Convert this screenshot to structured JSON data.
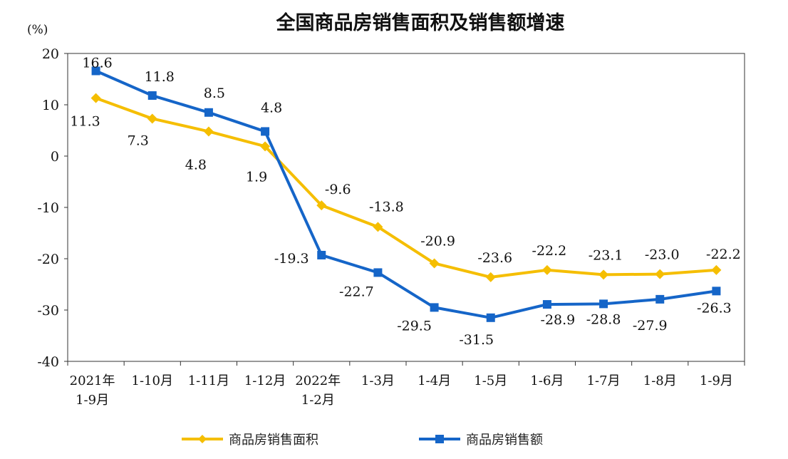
{
  "chart_data": {
    "type": "line",
    "title": "全国商品房销售面积及销售额增速",
    "ylabel": "(%)",
    "xlabel": "",
    "ylim": [
      -40,
      20
    ],
    "yticks": [
      20,
      10,
      0,
      -10,
      -20,
      -30,
      -40
    ],
    "grid": false,
    "legend_position": "bottom",
    "categories": [
      [
        "2021年",
        "1-9月"
      ],
      [
        "1-10月"
      ],
      [
        "1-11月"
      ],
      [
        "1-12月"
      ],
      [
        "2022年",
        "1-2月"
      ],
      [
        "1-3月"
      ],
      [
        "1-4月"
      ],
      [
        "1-5月"
      ],
      [
        "1-6月"
      ],
      [
        "1-7月"
      ],
      [
        "1-8月"
      ],
      [
        "1-9月"
      ]
    ],
    "series": [
      {
        "name": "商品房销售面积",
        "color": "#F5BE00",
        "marker": "diamond",
        "values": [
          11.3,
          7.3,
          4.8,
          1.9,
          -9.6,
          -13.8,
          -20.9,
          -23.6,
          -22.2,
          -23.1,
          -23.0,
          -22.2
        ]
      },
      {
        "name": "商品房销售额",
        "color": "#1565C8",
        "marker": "square",
        "values": [
          16.6,
          11.8,
          8.5,
          4.8,
          -19.3,
          -22.7,
          -29.5,
          -31.5,
          -28.9,
          -28.8,
          -27.9,
          -26.3
        ]
      }
    ]
  }
}
